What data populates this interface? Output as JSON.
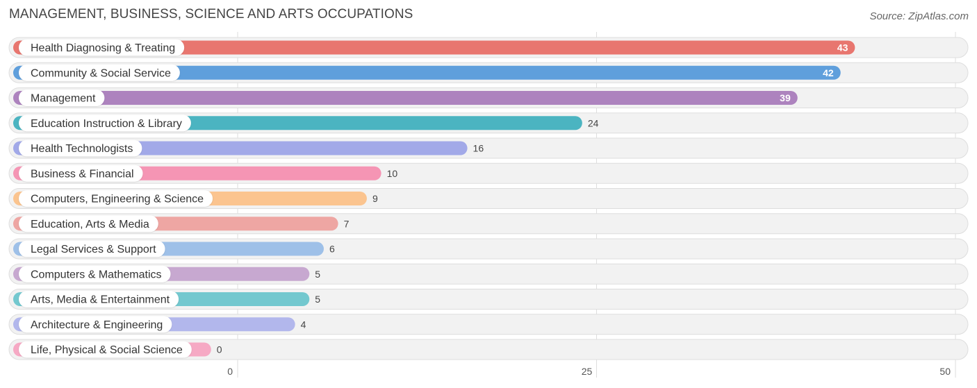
{
  "title": "MANAGEMENT, BUSINESS, SCIENCE AND ARTS OCCUPATIONS",
  "source": "Source: ZipAtlas.com",
  "chart_data": {
    "type": "bar",
    "orientation": "horizontal",
    "title": "MANAGEMENT, BUSINESS, SCIENCE AND ARTS OCCUPATIONS",
    "xlim": [
      0,
      50
    ],
    "xticks": [
      0,
      25,
      50
    ],
    "grid": true,
    "categories": [
      "Health Diagnosing & Treating",
      "Community & Social Service",
      "Management",
      "Education Instruction & Library",
      "Health Technologists",
      "Business & Financial",
      "Computers, Engineering & Science",
      "Education, Arts & Media",
      "Legal Services & Support",
      "Computers & Mathematics",
      "Arts, Media & Entertainment",
      "Architecture & Engineering",
      "Life, Physical & Social Science"
    ],
    "values": [
      43,
      42,
      39,
      24,
      16,
      10,
      9,
      7,
      6,
      5,
      5,
      4,
      0
    ],
    "colors": [
      "#e8766f",
      "#5f9fdc",
      "#ad83be",
      "#4bb4c1",
      "#a2a9e8",
      "#f595b4",
      "#fbc48f",
      "#eea6a3",
      "#9ec0e8",
      "#c7a8d0",
      "#73c8cf",
      "#b2b7ec",
      "#f6a9c4"
    ]
  }
}
